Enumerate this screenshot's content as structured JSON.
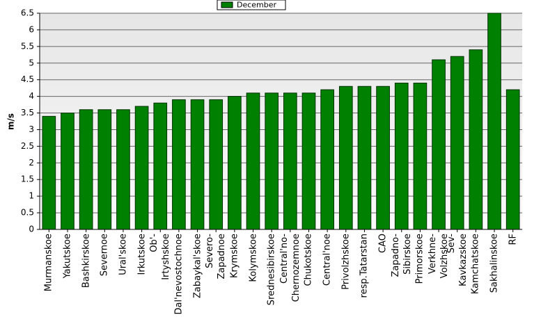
{
  "chart_data": {
    "type": "bar",
    "y_label": "m/s",
    "categories": [
      "Murmanskoe",
      "Yakutskoe",
      "Bashkirskoe",
      "Severnoe",
      "Ural'skoe",
      "Irkutskoe",
      "Ob'-\nIrtyshskoe",
      "Dal'nevostochnoe",
      "Zabaykal'skoe",
      "Severo-\nZapadnoe",
      "Krymskoe",
      "Kolymskoe",
      "Srednesibirskoe",
      "Central'no-\nChernozemnoe",
      "Chukotskoe",
      "Central'noe",
      "Privolzhskoe",
      "resp.Tatarstan",
      "CAO",
      "Zapadno-\nSibirskoe",
      "Primorskoe",
      "Verkhne-\nVolzhskoe",
      "Sev-\nKavkazskoe",
      "Kamchatskoe",
      "Sakhalinskoe",
      "RF"
    ],
    "series": [
      {
        "name": "December",
        "color": "#008000",
        "values": [
          3.4,
          3.5,
          3.6,
          3.6,
          3.6,
          3.7,
          3.8,
          3.9,
          3.9,
          3.9,
          4.0,
          4.1,
          4.1,
          4.1,
          4.1,
          4.2,
          4.3,
          4.3,
          4.3,
          4.4,
          4.4,
          5.1,
          5.2,
          5.4,
          6.5,
          4.2
        ]
      }
    ],
    "ylim": [
      0,
      6.5
    ],
    "yticks": [
      0,
      0.5,
      1,
      1.5,
      2,
      2.5,
      3,
      3.5,
      4,
      4.5,
      5,
      5.5,
      6,
      6.5
    ],
    "grid": true
  }
}
